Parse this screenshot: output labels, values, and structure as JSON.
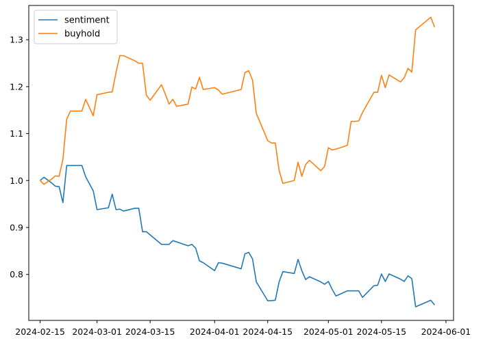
{
  "chart_data": {
    "type": "line",
    "title": "",
    "xlabel": "",
    "ylabel": "",
    "x_axis_type": "date",
    "xlim": [
      "2024-02-12",
      "2024-06-03"
    ],
    "ylim": [
      0.702,
      1.373
    ],
    "grid": false,
    "legend_position": "top-left",
    "x_ticks": [
      "2024-02-15",
      "2024-03-01",
      "2024-03-15",
      "2024-04-01",
      "2024-04-15",
      "2024-05-01",
      "2024-05-15",
      "2024-06-01"
    ],
    "y_ticks": [
      0.8,
      0.9,
      1.0,
      1.1,
      1.2,
      1.3
    ],
    "y_tick_labels": [
      "0.8",
      "0.9",
      "1.0",
      "1.1",
      "1.2",
      "1.3"
    ],
    "series": [
      {
        "name": "sentiment",
        "color": "#1f77b4",
        "x": [
          "2024-02-15",
          "2024-02-16",
          "2024-02-18",
          "2024-02-19",
          "2024-02-20",
          "2024-02-21",
          "2024-02-22",
          "2024-02-26",
          "2024-02-27",
          "2024-02-29",
          "2024-03-01",
          "2024-03-04",
          "2024-03-05",
          "2024-03-06",
          "2024-03-07",
          "2024-03-08",
          "2024-03-11",
          "2024-03-12",
          "2024-03-13",
          "2024-03-14",
          "2024-03-18",
          "2024-03-19",
          "2024-03-20",
          "2024-03-21",
          "2024-03-25",
          "2024-03-26",
          "2024-03-27",
          "2024-03-28",
          "2024-03-29",
          "2024-04-01",
          "2024-04-02",
          "2024-04-03",
          "2024-04-08",
          "2024-04-09",
          "2024-04-10",
          "2024-04-11",
          "2024-04-12",
          "2024-04-15",
          "2024-04-16",
          "2024-04-17",
          "2024-04-18",
          "2024-04-19",
          "2024-04-22",
          "2024-04-23",
          "2024-04-24",
          "2024-04-25",
          "2024-04-26",
          "2024-04-29",
          "2024-04-30",
          "2024-05-01",
          "2024-05-02",
          "2024-05-03",
          "2024-05-06",
          "2024-05-07",
          "2024-05-08",
          "2024-05-09",
          "2024-05-10",
          "2024-05-13",
          "2024-05-14",
          "2024-05-15",
          "2024-05-16",
          "2024-05-17",
          "2024-05-20",
          "2024-05-21",
          "2024-05-22",
          "2024-05-23",
          "2024-05-24",
          "2024-05-28",
          "2024-05-29"
        ],
        "values": [
          1.0,
          1.007,
          0.995,
          0.988,
          0.987,
          0.953,
          1.032,
          1.032,
          1.008,
          0.978,
          0.938,
          0.942,
          0.971,
          0.938,
          0.939,
          0.935,
          0.941,
          0.941,
          0.891,
          0.891,
          0.864,
          0.864,
          0.864,
          0.872,
          0.861,
          0.864,
          0.856,
          0.829,
          0.825,
          0.808,
          0.825,
          0.824,
          0.812,
          0.844,
          0.847,
          0.833,
          0.784,
          0.744,
          0.744,
          0.745,
          0.784,
          0.806,
          0.802,
          0.832,
          0.808,
          0.789,
          0.795,
          0.784,
          0.779,
          0.785,
          0.768,
          0.754,
          0.765,
          0.765,
          0.765,
          0.765,
          0.751,
          0.776,
          0.777,
          0.801,
          0.785,
          0.801,
          0.79,
          0.785,
          0.797,
          0.791,
          0.731,
          0.745,
          0.735
        ]
      },
      {
        "name": "buyhold",
        "color": "#ff7f0e",
        "x": [
          "2024-02-15",
          "2024-02-16",
          "2024-02-18",
          "2024-02-19",
          "2024-02-20",
          "2024-02-21",
          "2024-02-22",
          "2024-02-23",
          "2024-02-26",
          "2024-02-27",
          "2024-02-29",
          "2024-03-01",
          "2024-03-04",
          "2024-03-05",
          "2024-03-06",
          "2024-03-07",
          "2024-03-08",
          "2024-03-11",
          "2024-03-12",
          "2024-03-13",
          "2024-03-14",
          "2024-03-15",
          "2024-03-18",
          "2024-03-19",
          "2024-03-20",
          "2024-03-21",
          "2024-03-22",
          "2024-03-25",
          "2024-03-26",
          "2024-03-27",
          "2024-03-28",
          "2024-03-29",
          "2024-04-01",
          "2024-04-02",
          "2024-04-03",
          "2024-04-08",
          "2024-04-09",
          "2024-04-10",
          "2024-04-11",
          "2024-04-12",
          "2024-04-15",
          "2024-04-16",
          "2024-04-17",
          "2024-04-18",
          "2024-04-19",
          "2024-04-22",
          "2024-04-23",
          "2024-04-24",
          "2024-04-25",
          "2024-04-26",
          "2024-04-29",
          "2024-04-30",
          "2024-05-01",
          "2024-05-02",
          "2024-05-03",
          "2024-05-06",
          "2024-05-07",
          "2024-05-08",
          "2024-05-09",
          "2024-05-10",
          "2024-05-13",
          "2024-05-14",
          "2024-05-15",
          "2024-05-16",
          "2024-05-17",
          "2024-05-20",
          "2024-05-21",
          "2024-05-22",
          "2024-05-23",
          "2024-05-24",
          "2024-05-28",
          "2024-05-29"
        ],
        "values": [
          1.0,
          0.992,
          1.003,
          1.01,
          1.009,
          1.045,
          1.131,
          1.148,
          1.148,
          1.173,
          1.138,
          1.183,
          1.188,
          1.189,
          1.23,
          1.266,
          1.266,
          1.255,
          1.25,
          1.25,
          1.182,
          1.171,
          1.204,
          1.184,
          1.163,
          1.173,
          1.158,
          1.163,
          1.199,
          1.195,
          1.22,
          1.194,
          1.198,
          1.193,
          1.184,
          1.194,
          1.23,
          1.234,
          1.214,
          1.143,
          1.085,
          1.08,
          1.08,
          1.022,
          0.994,
          1.0,
          1.039,
          1.009,
          1.034,
          1.043,
          1.021,
          1.03,
          1.07,
          1.065,
          1.067,
          1.075,
          1.126,
          1.126,
          1.127,
          1.145,
          1.188,
          1.188,
          1.224,
          1.198,
          1.225,
          1.21,
          1.219,
          1.239,
          1.231,
          1.321,
          1.348,
          1.327
        ]
      }
    ]
  }
}
